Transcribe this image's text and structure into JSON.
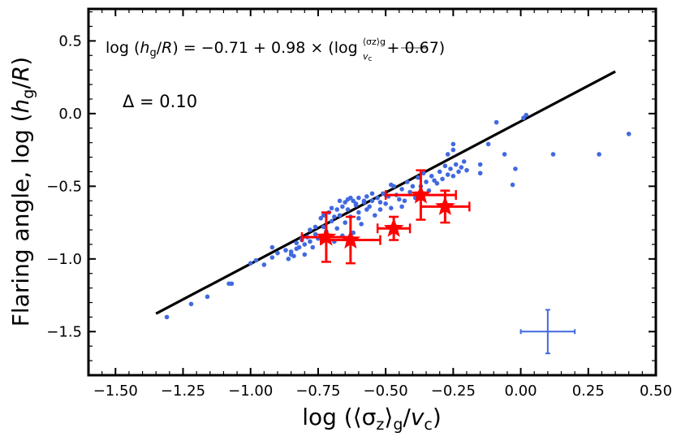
{
  "chart_data": {
    "type": "scatter",
    "xlabel": "log (⟨σz⟩g/vc)",
    "ylabel": "Flaring angle,  log (hg/R)",
    "xlim": [
      -1.6,
      0.5
    ],
    "ylim": [
      -1.8,
      0.72
    ],
    "xticks": [
      -1.5,
      -1.25,
      -1.0,
      -0.75,
      -0.5,
      -0.25,
      0.0,
      0.25,
      0.5
    ],
    "xtick_labels": [
      "−1.50",
      "−1.25",
      "−1.00",
      "−0.75",
      "−0.50",
      "−0.25",
      "0.00",
      "0.25",
      "0.50"
    ],
    "yticks": [
      0.5,
      0.0,
      -0.5,
      -1.0,
      -1.5
    ],
    "ytick_labels": [
      "0.5",
      "0.0",
      "−0.5",
      "−1.0",
      "−1.5"
    ],
    "grid": false,
    "annotations": {
      "equation": "log (hg/R) = −0.71 + 0.98 × (log ⟨σz⟩g/vc + 0.67)",
      "delta": "Δ = 0.10"
    },
    "fit_line": {
      "intercept": -0.71,
      "slope": 0.98,
      "x_offset": 0.67,
      "x_range": [
        -1.35,
        0.35
      ],
      "color": "#000000"
    },
    "series": [
      {
        "color": "#4169e1",
        "marker": "circle",
        "points": [
          [
            -1.31,
            -1.4
          ],
          [
            -1.22,
            -1.31
          ],
          [
            -1.16,
            -1.26
          ],
          [
            -1.08,
            -1.17
          ],
          [
            -1.07,
            -1.17
          ],
          [
            -1.0,
            -1.03
          ],
          [
            -0.98,
            -1.01
          ],
          [
            -0.95,
            -1.04
          ],
          [
            -0.92,
            -0.92
          ],
          [
            -0.9,
            -0.96
          ],
          [
            -0.87,
            -0.94
          ],
          [
            -0.85,
            -0.97
          ],
          [
            -0.84,
            -0.98
          ],
          [
            -0.85,
            -0.95
          ],
          [
            -0.83,
            -0.93
          ],
          [
            -0.83,
            -0.89
          ],
          [
            -0.82,
            -0.92
          ],
          [
            -0.81,
            -0.87
          ],
          [
            -0.8,
            -0.9
          ],
          [
            -0.8,
            -0.97
          ],
          [
            -0.79,
            -0.85
          ],
          [
            -0.78,
            -0.8
          ],
          [
            -0.77,
            -0.92
          ],
          [
            -0.76,
            -0.83
          ],
          [
            -0.75,
            -0.86
          ],
          [
            -0.74,
            -0.72
          ],
          [
            -0.73,
            -0.78
          ],
          [
            -0.72,
            -0.81
          ],
          [
            -0.71,
            -0.68
          ],
          [
            -0.7,
            -0.74
          ],
          [
            -0.69,
            -0.88
          ],
          [
            -0.68,
            -0.79
          ],
          [
            -0.68,
            -0.66
          ],
          [
            -0.67,
            -0.7
          ],
          [
            -0.66,
            -0.84
          ],
          [
            -0.65,
            -0.61
          ],
          [
            -0.65,
            -0.75
          ],
          [
            -0.64,
            -0.66
          ],
          [
            -0.63,
            -0.71
          ],
          [
            -0.63,
            -0.58
          ],
          [
            -0.62,
            -0.82
          ],
          [
            -0.61,
            -0.63
          ],
          [
            -0.6,
            -0.68
          ],
          [
            -0.6,
            -0.58
          ],
          [
            -0.59,
            -0.76
          ],
          [
            -0.58,
            -0.61
          ],
          [
            -0.57,
            -0.57
          ],
          [
            -0.56,
            -0.64
          ],
          [
            -0.55,
            -0.6
          ],
          [
            -0.54,
            -0.7
          ],
          [
            -0.53,
            -0.58
          ],
          [
            -0.52,
            -0.66
          ],
          [
            -0.51,
            -0.55
          ],
          [
            -0.5,
            -0.62
          ],
          [
            -0.49,
            -0.57
          ],
          [
            -0.48,
            -0.65
          ],
          [
            -0.47,
            -0.5
          ],
          [
            -0.46,
            -0.56
          ],
          [
            -0.45,
            -0.59
          ],
          [
            -0.44,
            -0.52
          ],
          [
            -0.43,
            -0.6
          ],
          [
            -0.42,
            -0.47
          ],
          [
            -0.41,
            -0.54
          ],
          [
            -0.4,
            -0.5
          ],
          [
            -0.39,
            -0.58
          ],
          [
            -0.38,
            -0.44
          ],
          [
            -0.37,
            -0.5
          ],
          [
            -0.36,
            -0.41
          ],
          [
            -0.35,
            -0.47
          ],
          [
            -0.34,
            -0.53
          ],
          [
            -0.33,
            -0.43
          ],
          [
            -0.32,
            -0.46
          ],
          [
            -0.31,
            -0.48
          ],
          [
            -0.3,
            -0.4
          ],
          [
            -0.29,
            -0.45
          ],
          [
            -0.28,
            -0.36
          ],
          [
            -0.27,
            -0.42
          ],
          [
            -0.26,
            -0.38
          ],
          [
            -0.25,
            -0.43
          ],
          [
            -0.24,
            -0.35
          ],
          [
            -0.23,
            -0.4
          ],
          [
            -0.22,
            -0.37
          ],
          [
            -0.21,
            -0.33
          ],
          [
            -0.27,
            -0.28
          ],
          [
            -0.25,
            -0.25
          ],
          [
            -0.25,
            -0.21
          ],
          [
            -0.2,
            -0.39
          ],
          [
            -0.15,
            -0.35
          ],
          [
            -0.15,
            -0.41
          ],
          [
            -0.12,
            -0.21
          ],
          [
            -0.09,
            -0.06
          ],
          [
            -0.06,
            -0.28
          ],
          [
            -0.03,
            -0.49
          ],
          [
            -0.02,
            -0.38
          ],
          [
            0.01,
            -0.03
          ],
          [
            0.02,
            -0.01
          ],
          [
            0.12,
            -0.28
          ],
          [
            0.29,
            -0.28
          ],
          [
            0.4,
            -0.14
          ],
          [
            -0.48,
            -0.49
          ],
          [
            -0.55,
            -0.55
          ],
          [
            -0.62,
            -0.6
          ],
          [
            -0.7,
            -0.65
          ],
          [
            -0.86,
            -1.0
          ],
          [
            -0.92,
            -0.99
          ],
          [
            -0.66,
            -0.64
          ],
          [
            -0.6,
            -0.72
          ],
          [
            -0.5,
            -0.56
          ],
          [
            -0.44,
            -0.64
          ],
          [
            -0.52,
            -0.61
          ],
          [
            -0.58,
            -0.6
          ],
          [
            -0.64,
            -0.59
          ],
          [
            -0.76,
            -0.78
          ],
          [
            -0.73,
            -0.7
          ],
          [
            -0.81,
            -0.86
          ],
          [
            -0.78,
            -0.88
          ],
          [
            -0.69,
            -0.71
          ],
          [
            -0.67,
            -0.6
          ],
          [
            -0.61,
            -0.62
          ],
          [
            -0.57,
            -0.66
          ]
        ]
      },
      {
        "color": "#ff0000",
        "marker": "star",
        "error_bars": true,
        "points": [
          {
            "x": -0.72,
            "y": -0.85,
            "xerr": 0.09,
            "yerr": 0.17
          },
          {
            "x": -0.63,
            "y": -0.87,
            "xerr": 0.11,
            "yerr": 0.16
          },
          {
            "x": -0.47,
            "y": -0.79,
            "xerr": 0.06,
            "yerr": 0.08
          },
          {
            "x": -0.37,
            "y": -0.56,
            "xerr": 0.13,
            "yerr": 0.17
          },
          {
            "x": -0.28,
            "y": -0.64,
            "xerr": 0.09,
            "yerr": 0.11
          }
        ]
      },
      {
        "color": "#4169e1",
        "marker": "errorbar-only",
        "points": [
          {
            "x": 0.1,
            "y": -1.5,
            "xerr": 0.1,
            "yerr": 0.15
          }
        ]
      }
    ]
  }
}
